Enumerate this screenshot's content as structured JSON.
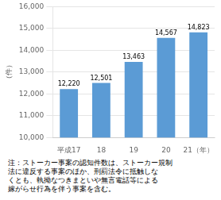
{
  "chart_data": {
    "type": "bar",
    "categories": [
      "平成17",
      "18",
      "19",
      "20",
      "21（年）"
    ],
    "values": [
      12220,
      12501,
      13463,
      14567,
      14823
    ],
    "value_labels": [
      "12,220",
      "12,501",
      "13,463",
      "14,567",
      "14,823"
    ],
    "data_labels": true,
    "color": "#5b9bd5",
    "ylabel": "（件）",
    "ylim": [
      10000,
      16000
    ],
    "yticks": [
      {
        "value": 10000,
        "label": "10,000"
      },
      {
        "value": 11000,
        "label": "11,000"
      },
      {
        "value": 12000,
        "label": "12,000"
      },
      {
        "value": 13000,
        "label": "13,000"
      },
      {
        "value": 14000,
        "label": "14,000"
      },
      {
        "value": 15000,
        "label": "15,000"
      },
      {
        "value": 16000,
        "label": "16,000"
      }
    ],
    "grid": true,
    "annotations": [
      "注：ストーカー事案の認知件数は、ストーカー規制",
      "法に違反する事案のほか、刑罰法令に抵触しな",
      "くとも、執拗なつきまといや無言電話等による",
      "嫁がらせ行為を伴う事案を含む。"
    ]
  }
}
